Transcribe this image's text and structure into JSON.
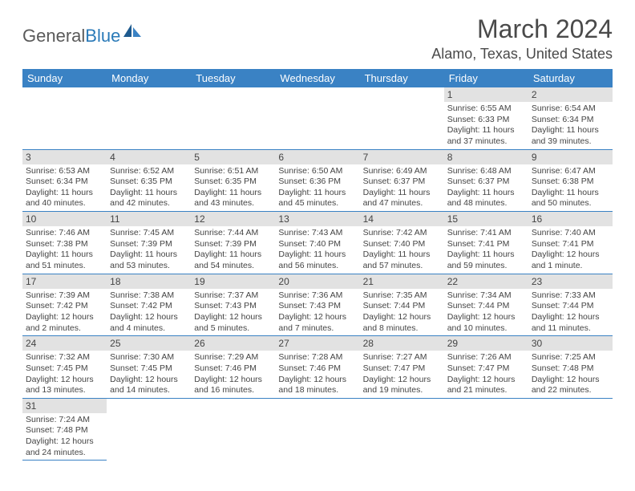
{
  "logo": {
    "part1": "General",
    "part2": "Blue"
  },
  "title": "March 2024",
  "location": "Alamo, Texas, United States",
  "colors": {
    "header_bg": "#3a82c4",
    "header_text": "#ffffff",
    "daynum_bg": "#e2e2e2",
    "border": "#3a82c4",
    "text": "#444444",
    "logo_gray": "#5a5a5a",
    "logo_blue": "#2a7ab8"
  },
  "weekdays": [
    "Sunday",
    "Monday",
    "Tuesday",
    "Wednesday",
    "Thursday",
    "Friday",
    "Saturday"
  ],
  "weeks": [
    [
      null,
      null,
      null,
      null,
      null,
      {
        "n": "1",
        "sr": "Sunrise: 6:55 AM",
        "ss": "Sunset: 6:33 PM",
        "dl": "Daylight: 11 hours and 37 minutes."
      },
      {
        "n": "2",
        "sr": "Sunrise: 6:54 AM",
        "ss": "Sunset: 6:34 PM",
        "dl": "Daylight: 11 hours and 39 minutes."
      }
    ],
    [
      {
        "n": "3",
        "sr": "Sunrise: 6:53 AM",
        "ss": "Sunset: 6:34 PM",
        "dl": "Daylight: 11 hours and 40 minutes."
      },
      {
        "n": "4",
        "sr": "Sunrise: 6:52 AM",
        "ss": "Sunset: 6:35 PM",
        "dl": "Daylight: 11 hours and 42 minutes."
      },
      {
        "n": "5",
        "sr": "Sunrise: 6:51 AM",
        "ss": "Sunset: 6:35 PM",
        "dl": "Daylight: 11 hours and 43 minutes."
      },
      {
        "n": "6",
        "sr": "Sunrise: 6:50 AM",
        "ss": "Sunset: 6:36 PM",
        "dl": "Daylight: 11 hours and 45 minutes."
      },
      {
        "n": "7",
        "sr": "Sunrise: 6:49 AM",
        "ss": "Sunset: 6:37 PM",
        "dl": "Daylight: 11 hours and 47 minutes."
      },
      {
        "n": "8",
        "sr": "Sunrise: 6:48 AM",
        "ss": "Sunset: 6:37 PM",
        "dl": "Daylight: 11 hours and 48 minutes."
      },
      {
        "n": "9",
        "sr": "Sunrise: 6:47 AM",
        "ss": "Sunset: 6:38 PM",
        "dl": "Daylight: 11 hours and 50 minutes."
      }
    ],
    [
      {
        "n": "10",
        "sr": "Sunrise: 7:46 AM",
        "ss": "Sunset: 7:38 PM",
        "dl": "Daylight: 11 hours and 51 minutes."
      },
      {
        "n": "11",
        "sr": "Sunrise: 7:45 AM",
        "ss": "Sunset: 7:39 PM",
        "dl": "Daylight: 11 hours and 53 minutes."
      },
      {
        "n": "12",
        "sr": "Sunrise: 7:44 AM",
        "ss": "Sunset: 7:39 PM",
        "dl": "Daylight: 11 hours and 54 minutes."
      },
      {
        "n": "13",
        "sr": "Sunrise: 7:43 AM",
        "ss": "Sunset: 7:40 PM",
        "dl": "Daylight: 11 hours and 56 minutes."
      },
      {
        "n": "14",
        "sr": "Sunrise: 7:42 AM",
        "ss": "Sunset: 7:40 PM",
        "dl": "Daylight: 11 hours and 57 minutes."
      },
      {
        "n": "15",
        "sr": "Sunrise: 7:41 AM",
        "ss": "Sunset: 7:41 PM",
        "dl": "Daylight: 11 hours and 59 minutes."
      },
      {
        "n": "16",
        "sr": "Sunrise: 7:40 AM",
        "ss": "Sunset: 7:41 PM",
        "dl": "Daylight: 12 hours and 1 minute."
      }
    ],
    [
      {
        "n": "17",
        "sr": "Sunrise: 7:39 AM",
        "ss": "Sunset: 7:42 PM",
        "dl": "Daylight: 12 hours and 2 minutes."
      },
      {
        "n": "18",
        "sr": "Sunrise: 7:38 AM",
        "ss": "Sunset: 7:42 PM",
        "dl": "Daylight: 12 hours and 4 minutes."
      },
      {
        "n": "19",
        "sr": "Sunrise: 7:37 AM",
        "ss": "Sunset: 7:43 PM",
        "dl": "Daylight: 12 hours and 5 minutes."
      },
      {
        "n": "20",
        "sr": "Sunrise: 7:36 AM",
        "ss": "Sunset: 7:43 PM",
        "dl": "Daylight: 12 hours and 7 minutes."
      },
      {
        "n": "21",
        "sr": "Sunrise: 7:35 AM",
        "ss": "Sunset: 7:44 PM",
        "dl": "Daylight: 12 hours and 8 minutes."
      },
      {
        "n": "22",
        "sr": "Sunrise: 7:34 AM",
        "ss": "Sunset: 7:44 PM",
        "dl": "Daylight: 12 hours and 10 minutes."
      },
      {
        "n": "23",
        "sr": "Sunrise: 7:33 AM",
        "ss": "Sunset: 7:44 PM",
        "dl": "Daylight: 12 hours and 11 minutes."
      }
    ],
    [
      {
        "n": "24",
        "sr": "Sunrise: 7:32 AM",
        "ss": "Sunset: 7:45 PM",
        "dl": "Daylight: 12 hours and 13 minutes."
      },
      {
        "n": "25",
        "sr": "Sunrise: 7:30 AM",
        "ss": "Sunset: 7:45 PM",
        "dl": "Daylight: 12 hours and 14 minutes."
      },
      {
        "n": "26",
        "sr": "Sunrise: 7:29 AM",
        "ss": "Sunset: 7:46 PM",
        "dl": "Daylight: 12 hours and 16 minutes."
      },
      {
        "n": "27",
        "sr": "Sunrise: 7:28 AM",
        "ss": "Sunset: 7:46 PM",
        "dl": "Daylight: 12 hours and 18 minutes."
      },
      {
        "n": "28",
        "sr": "Sunrise: 7:27 AM",
        "ss": "Sunset: 7:47 PM",
        "dl": "Daylight: 12 hours and 19 minutes."
      },
      {
        "n": "29",
        "sr": "Sunrise: 7:26 AM",
        "ss": "Sunset: 7:47 PM",
        "dl": "Daylight: 12 hours and 21 minutes."
      },
      {
        "n": "30",
        "sr": "Sunrise: 7:25 AM",
        "ss": "Sunset: 7:48 PM",
        "dl": "Daylight: 12 hours and 22 minutes."
      }
    ],
    [
      {
        "n": "31",
        "sr": "Sunrise: 7:24 AM",
        "ss": "Sunset: 7:48 PM",
        "dl": "Daylight: 12 hours and 24 minutes."
      },
      null,
      null,
      null,
      null,
      null,
      null
    ]
  ]
}
